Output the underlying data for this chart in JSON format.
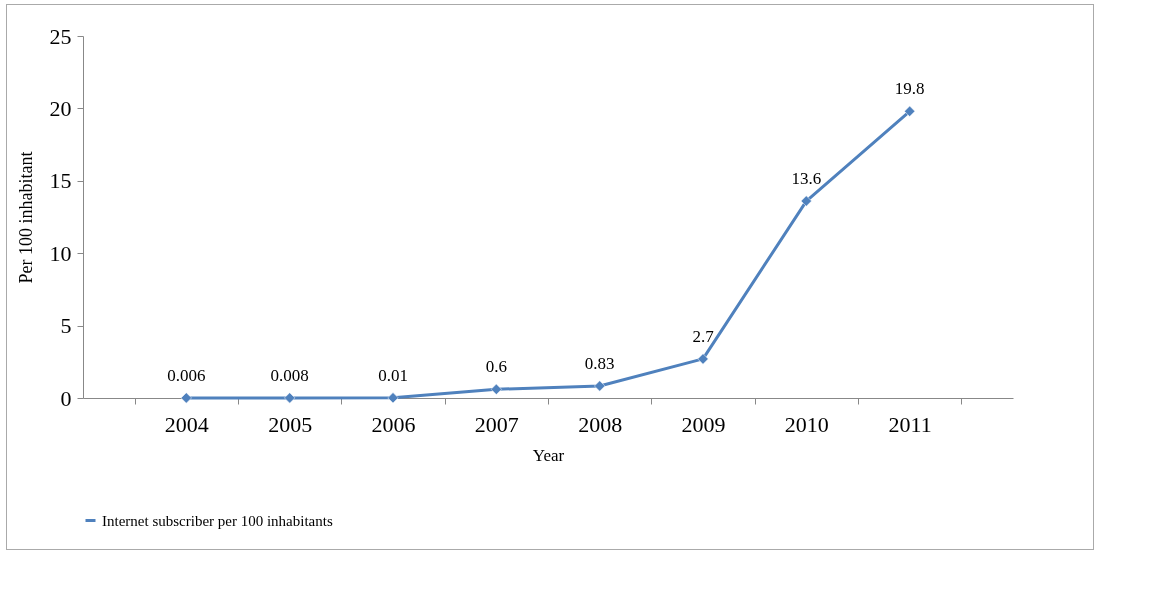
{
  "chart_data": {
    "type": "line",
    "xlabel": "Year",
    "ylabel": "Per 100 inhabitant",
    "categories": [
      "2004",
      "2005",
      "2006",
      "2007",
      "2008",
      "2009",
      "2010",
      "2011"
    ],
    "series": [
      {
        "name": "Internet subscriber per 100 inhabitants",
        "color": "#4f81bd",
        "values": [
          0.006,
          0.008,
          0.01,
          0.6,
          0.83,
          2.7,
          13.6,
          19.8
        ]
      }
    ],
    "ylim": [
      0,
      25
    ],
    "yticks": [
      0,
      5,
      10,
      15,
      20,
      25
    ],
    "grid": false,
    "legend": "bottom",
    "marker": "diamond",
    "line_style": "solid",
    "data_labels": true
  }
}
